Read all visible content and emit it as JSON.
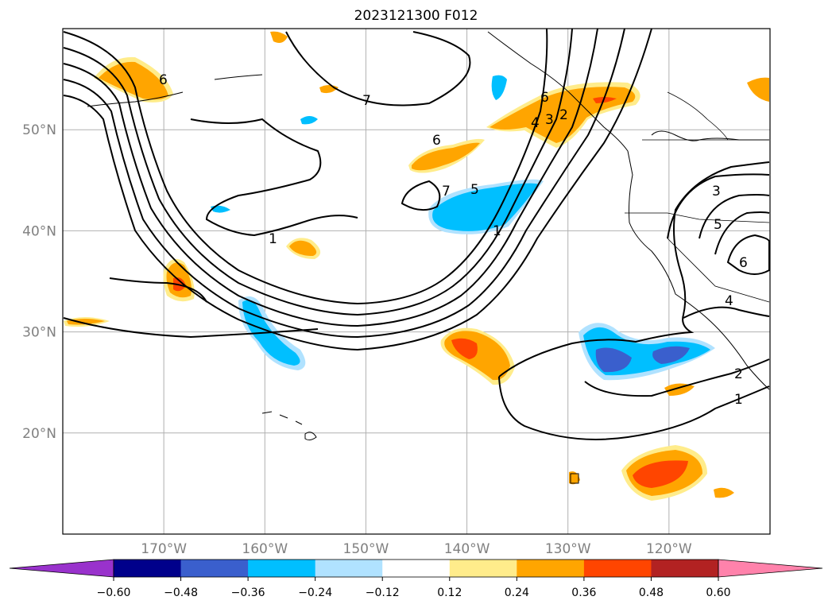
{
  "title": "2023121300 F012",
  "map": {
    "lon_range": [
      -180,
      -110
    ],
    "lat_range": [
      10,
      60
    ],
    "lat_ticks": [
      {
        "lat": 20,
        "label": "20°N"
      },
      {
        "lat": 30,
        "label": "30°N"
      },
      {
        "lat": 40,
        "label": "40°N"
      },
      {
        "lat": 50,
        "label": "50°N"
      }
    ],
    "lon_ticks": [
      {
        "lon": -170,
        "label": "170°W"
      },
      {
        "lon": -160,
        "label": "160°W"
      },
      {
        "lon": -150,
        "label": "150°W"
      },
      {
        "lon": -140,
        "label": "140°W"
      },
      {
        "lon": -130,
        "label": "130°W"
      },
      {
        "lon": -120,
        "label": "120°W"
      }
    ],
    "contour_labels": [
      "1",
      "2",
      "3",
      "4",
      "5",
      "6",
      "7"
    ]
  },
  "colorbar": {
    "extend": "both",
    "levels": [
      "-0.60",
      "-0.48",
      "-0.36",
      "-0.24",
      "-0.12",
      "0.12",
      "0.24",
      "0.36",
      "0.48",
      "0.60"
    ],
    "colors": [
      "#9932cc",
      "#00008b",
      "#3a5fcd",
      "#00bfff",
      "#b0e2ff",
      "#ffffff",
      "#ffec8b",
      "#ffa500",
      "#ff4500",
      "#b22222",
      "#ff82ab"
    ]
  }
}
